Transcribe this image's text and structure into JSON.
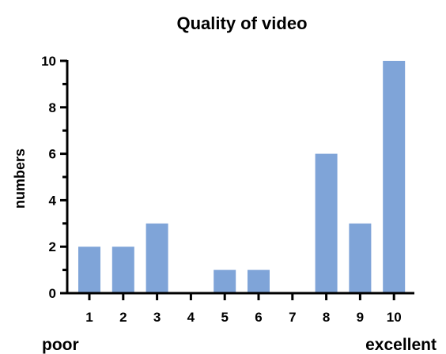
{
  "chart_data": {
    "type": "bar",
    "title": "Quality of video",
    "ylabel": "numbers",
    "xlabel": "",
    "categories": [
      "1",
      "2",
      "3",
      "4",
      "5",
      "6",
      "7",
      "8",
      "9",
      "10"
    ],
    "values": [
      2,
      2,
      3,
      0,
      1,
      1,
      0,
      6,
      3,
      10
    ],
    "ylim": [
      0,
      10
    ],
    "yticks": [
      "0",
      "2",
      "4",
      "6",
      "8",
      "10"
    ],
    "scale_start_label": "poor",
    "scale_end_label": "excellent",
    "grid": false,
    "legend": "none",
    "bar_color": "#7fa4d8",
    "axis_color": "#000000"
  }
}
